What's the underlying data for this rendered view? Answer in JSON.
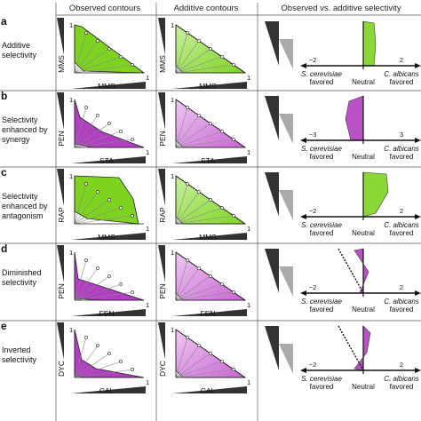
{
  "headers": [
    "Observed contours",
    "Additive contours",
    "Observed vs. additive selectivity"
  ],
  "rows": [
    {
      "letter": "a",
      "desc": [
        "Additive",
        "selectivity"
      ],
      "ylabel": "MMS",
      "xlabel": "MMS",
      "color": "#7ed321",
      "neg": "−2",
      "pos": "2",
      "left_species": "S. cerevisiae",
      "right_species": "C. albicans"
    },
    {
      "letter": "b",
      "desc": [
        "Selectivity",
        "enhanced by",
        "synergy"
      ],
      "ylabel": "PEN",
      "xlabel": "STA",
      "color": "#b23fc2",
      "neg": "−3",
      "pos": "3",
      "left_species": "S. cerevisiae",
      "right_species": "C. albicans"
    },
    {
      "letter": "c",
      "desc": [
        "Selectivity",
        "enhanced by",
        "antagonism"
      ],
      "ylabel": "RAP",
      "xlabel": "MMS",
      "color": "#7ed321",
      "neg": "−2",
      "pos": "2",
      "left_species": "S. cerevisiae",
      "right_species": "C. albicans"
    },
    {
      "letter": "d",
      "desc": [
        "Diminished",
        "selectivity"
      ],
      "ylabel": "PEN",
      "xlabel": "FEN",
      "color": "#b23fc2",
      "neg": "−2",
      "pos": "2",
      "left_species": "S. cerevisiae",
      "right_species": "C. albicans"
    },
    {
      "letter": "e",
      "desc": [
        "Inverted",
        "selectivity"
      ],
      "ylabel": "DYC",
      "xlabel": "CAL",
      "color": "#b23fc2",
      "neg": "−2",
      "pos": "2",
      "left_species": "S. cerevisiae",
      "right_species": "C. albicans"
    }
  ],
  "labels": {
    "one": "1",
    "favored": "favored",
    "neutral": "Neutral"
  }
}
